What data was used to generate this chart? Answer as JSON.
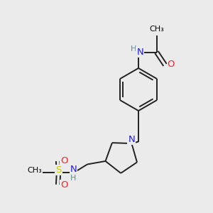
{
  "background_color": "#ebebeb",
  "atom_colors": {
    "C": "#000000",
    "N": "#2020cc",
    "O": "#ff2020",
    "S": "#cccc00",
    "H": "#5a9090"
  },
  "bond_color": "#222222",
  "bond_width": 1.4,
  "double_sep": 0.055,
  "aromatic_sep": 0.055
}
